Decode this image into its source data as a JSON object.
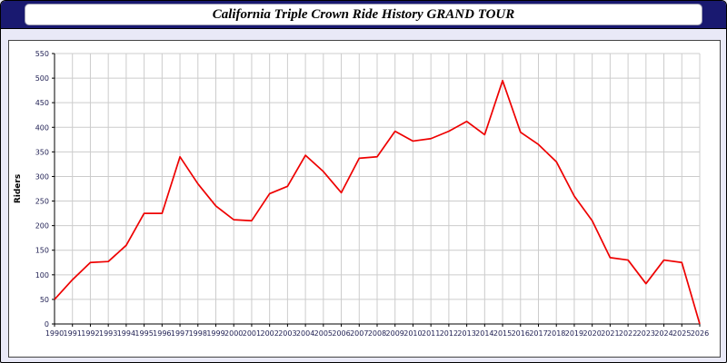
{
  "header": {
    "title": "California Triple Crown Ride History GRAND TOUR"
  },
  "chart_data": {
    "type": "line",
    "title": "California Triple Crown Ride History GRAND TOUR",
    "x": [
      1990,
      1991,
      1992,
      1993,
      1994,
      1995,
      1996,
      1997,
      1998,
      1999,
      2000,
      2001,
      2002,
      2003,
      2004,
      2005,
      2006,
      2007,
      2008,
      2009,
      2010,
      2011,
      2012,
      2013,
      2014,
      2015,
      2016,
      2017,
      2018,
      2019,
      2020,
      2021,
      2022,
      2023,
      2024,
      2025,
      2026
    ],
    "values": [
      50,
      90,
      125,
      127,
      160,
      225,
      225,
      340,
      285,
      240,
      212,
      210,
      265,
      280,
      343,
      310,
      267,
      337,
      340,
      392,
      372,
      377,
      392,
      412,
      385,
      495,
      390,
      365,
      330,
      260,
      210,
      135,
      130,
      82,
      130,
      125,
      0
    ],
    "series_name": "Riders",
    "xlabel": "",
    "ylabel": "Riders",
    "ylim": [
      0,
      550
    ],
    "ytick_step": 50,
    "grid": true,
    "legend": "none",
    "line_color": "#ee0000",
    "grid_color": "#cccccc",
    "axis_color": "#000000",
    "axis_label_color": "#222255",
    "plot_background": "#ffffff",
    "page_background": "#e9e9f7",
    "banner_color": "#191970"
  }
}
